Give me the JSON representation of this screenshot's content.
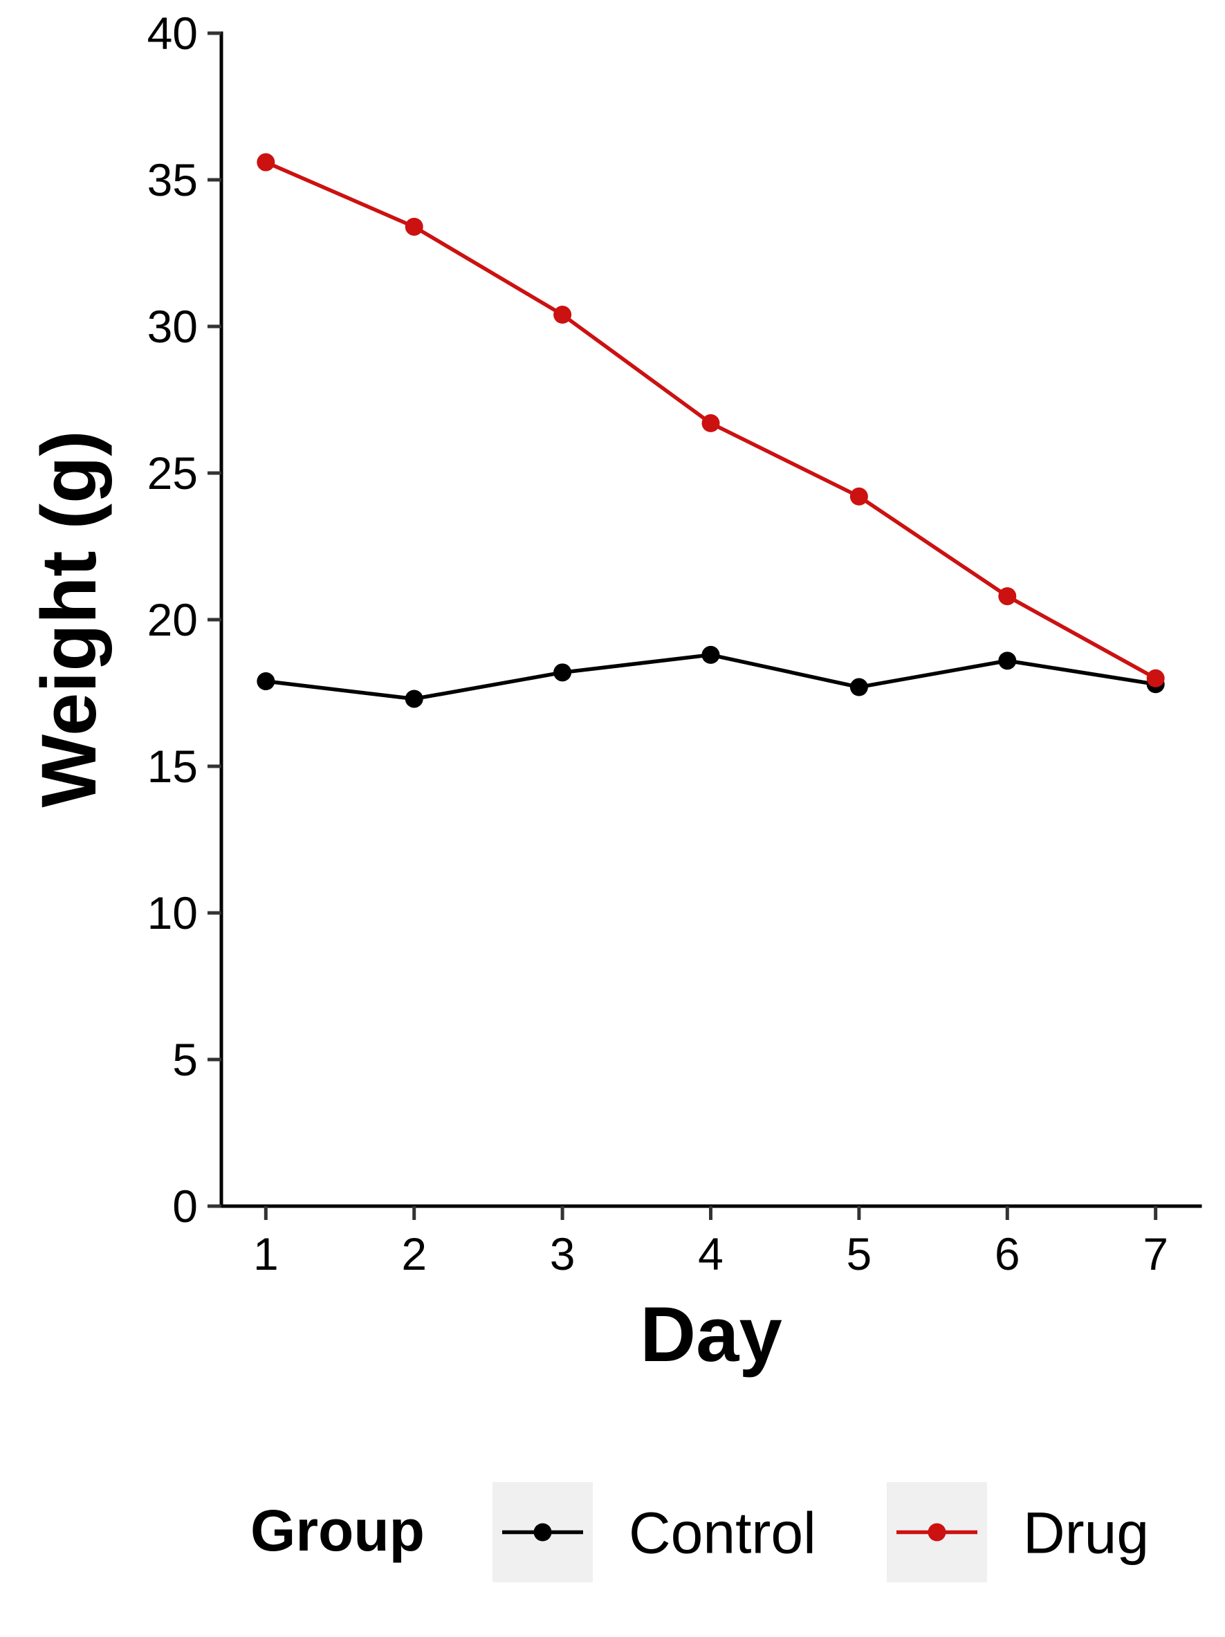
{
  "chart_data": {
    "type": "line",
    "xlabel": "Day",
    "ylabel": "Weight (g)",
    "x": [
      1,
      2,
      3,
      4,
      5,
      6,
      7
    ],
    "xticks": [
      "1",
      "2",
      "3",
      "4",
      "5",
      "6",
      "7"
    ],
    "yticks": [
      "0",
      "5",
      "10",
      "15",
      "20",
      "25",
      "30",
      "35",
      "40"
    ],
    "ylim": [
      0,
      40
    ],
    "xlim": [
      0.7,
      7.3
    ],
    "grid": false,
    "legend_position": "bottom",
    "legend": {
      "title": "Group"
    },
    "series": [
      {
        "name": "Control",
        "color": "#000000",
        "values": [
          17.9,
          17.3,
          18.2,
          18.8,
          17.7,
          18.6,
          17.8
        ]
      },
      {
        "name": "Drug",
        "color": "#cc1111",
        "values": [
          35.6,
          33.4,
          30.4,
          26.7,
          24.2,
          20.8,
          18.0
        ]
      }
    ],
    "legend_key_background": "#f0f0f0"
  }
}
